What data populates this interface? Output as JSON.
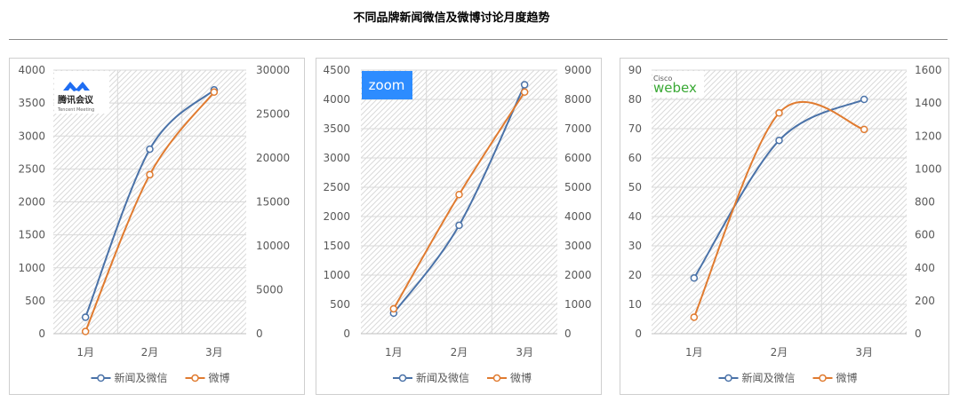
{
  "page": {
    "title": "不同品牌新闻微信及微博讨论月度趋势"
  },
  "chart_data": [
    {
      "type": "line",
      "logo": {
        "name": "tencent-meeting-logo",
        "text": "腾讯会议",
        "subtext": "Tencent Meeting"
      },
      "categories": [
        "1月",
        "2月",
        "3月"
      ],
      "y_left": {
        "min": 0,
        "max": 4000,
        "step": 500
      },
      "y_right": {
        "min": 0,
        "max": 30000,
        "step": 5000
      },
      "series": [
        {
          "name": "新闻及微信",
          "axis": "left",
          "color": "#4a72a8",
          "values": [
            250,
            2800,
            3700
          ]
        },
        {
          "name": "微博",
          "axis": "right",
          "color": "#e07b30",
          "values": [
            250,
            18100,
            27500
          ]
        }
      ],
      "grid": true,
      "legend": "bottom"
    },
    {
      "type": "line",
      "logo": {
        "name": "zoom-logo",
        "text": "zoom"
      },
      "categories": [
        "1月",
        "2月",
        "3月"
      ],
      "y_left": {
        "min": 0,
        "max": 4500,
        "step": 500
      },
      "y_right": {
        "min": 0,
        "max": 9000,
        "step": 1000
      },
      "series": [
        {
          "name": "新闻及微信",
          "axis": "left",
          "color": "#4a72a8",
          "values": [
            350,
            1850,
            4250
          ]
        },
        {
          "name": "微博",
          "axis": "right",
          "color": "#e07b30",
          "values": [
            850,
            4750,
            8250
          ]
        }
      ],
      "grid": true,
      "legend": "bottom"
    },
    {
      "type": "line",
      "logo": {
        "name": "cisco-webex-logo",
        "text": "webex",
        "subtext": "Cisco"
      },
      "categories": [
        "1月",
        "2月",
        "3月"
      ],
      "y_left": {
        "min": 0,
        "max": 90,
        "step": 10
      },
      "y_right": {
        "min": 0,
        "max": 1600,
        "step": 200
      },
      "series": [
        {
          "name": "新闻及微信",
          "axis": "left",
          "color": "#4a72a8",
          "values": [
            19,
            66,
            80
          ]
        },
        {
          "name": "微博",
          "axis": "right",
          "color": "#e07b30",
          "values": [
            100,
            1340,
            1240
          ]
        }
      ],
      "grid": true,
      "legend": "bottom"
    }
  ]
}
